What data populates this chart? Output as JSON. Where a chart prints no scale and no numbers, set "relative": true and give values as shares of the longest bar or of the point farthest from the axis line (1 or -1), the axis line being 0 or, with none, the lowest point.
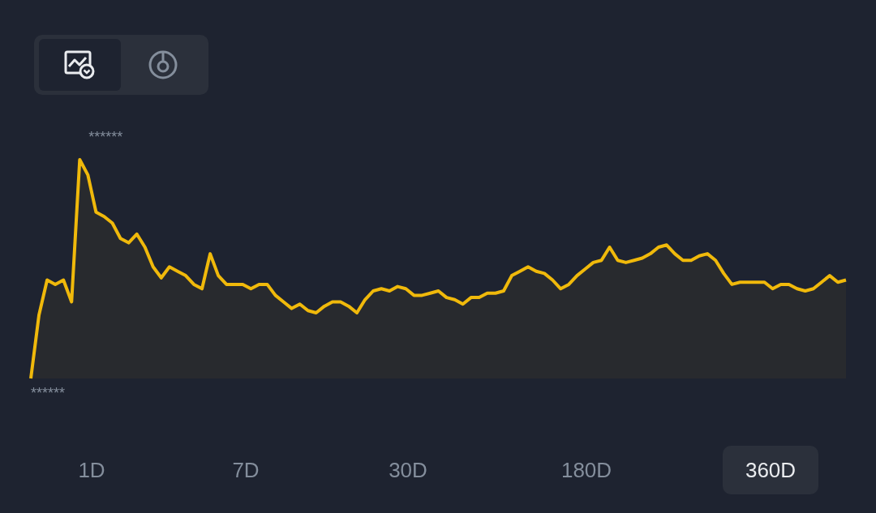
{
  "chart_data": {
    "type": "area",
    "relative": true,
    "color": "#f0b90b",
    "categories": [
      null,
      null,
      null,
      null,
      null,
      null,
      null,
      null,
      null,
      null,
      null,
      null,
      null,
      null,
      null,
      null,
      null,
      null,
      null,
      null,
      null,
      null,
      null,
      null,
      null,
      null,
      null,
      null,
      null,
      null,
      null,
      null,
      null,
      null,
      null,
      null,
      null,
      null,
      null,
      null,
      null,
      null,
      null,
      null,
      null,
      null,
      null,
      null,
      null,
      null,
      null,
      null,
      null,
      null,
      null,
      null,
      null,
      null,
      null,
      null,
      null,
      null,
      null,
      null,
      null,
      null,
      null,
      null,
      null,
      null,
      null,
      null,
      null,
      null,
      null,
      null,
      null,
      null,
      null,
      null,
      null,
      null,
      null,
      null,
      null,
      null,
      null,
      null,
      null,
      null,
      null,
      null,
      null,
      null,
      null,
      null,
      null,
      null,
      null,
      null,
      null
    ],
    "values": [
      0,
      0.29,
      0.45,
      0.43,
      0.45,
      0.35,
      1,
      0.93,
      0.76,
      0.74,
      0.71,
      0.64,
      0.62,
      0.66,
      0.6,
      0.51,
      0.46,
      0.51,
      0.49,
      0.47,
      0.43,
      0.41,
      0.57,
      0.47,
      0.43,
      0.43,
      0.43,
      0.41,
      0.43,
      0.43,
      0.38,
      0.35,
      0.32,
      0.34,
      0.31,
      0.3,
      0.33,
      0.35,
      0.35,
      0.33,
      0.3,
      0.36,
      0.4,
      0.41,
      0.4,
      0.42,
      0.41,
      0.38,
      0.38,
      0.39,
      0.4,
      0.37,
      0.36,
      0.34,
      0.37,
      0.37,
      0.39,
      0.39,
      0.4,
      0.47,
      0.49,
      0.51,
      0.49,
      0.48,
      0.45,
      0.41,
      0.43,
      0.47,
      0.5,
      0.53,
      0.54,
      0.6,
      0.54,
      0.53,
      0.54,
      0.55,
      0.57,
      0.6,
      0.61,
      0.57,
      0.54,
      0.54,
      0.56,
      0.57,
      0.54,
      0.48,
      0.43,
      0.44,
      0.44,
      0.44,
      0.44,
      0.41,
      0.43,
      0.43,
      0.41,
      0.4,
      0.41,
      0.44,
      0.47,
      0.44,
      0.45
    ],
    "annotations": [
      "******",
      "******",
      "1D",
      "7D",
      "30D",
      "180D",
      "360D"
    ]
  }
}
